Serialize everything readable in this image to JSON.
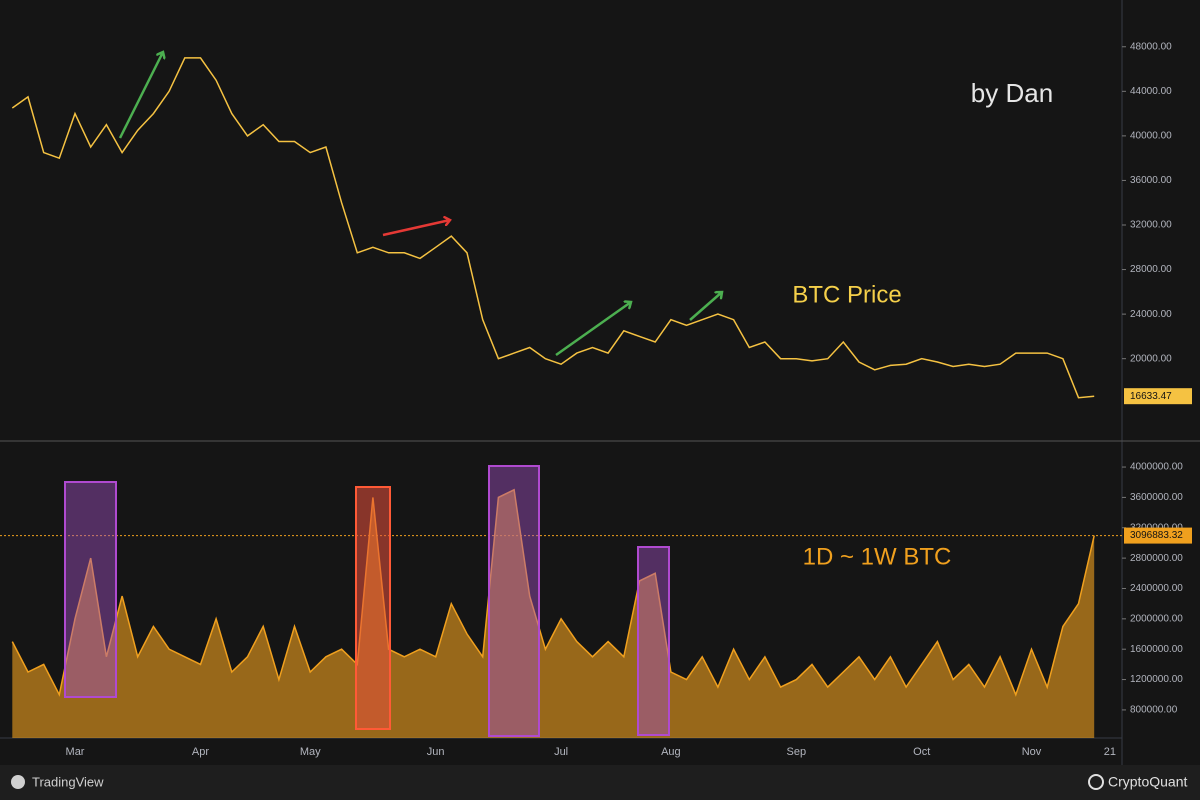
{
  "chart_data": [
    {
      "type": "line",
      "annotations": [
        "by Dan",
        "BTC Price"
      ],
      "color": "#f5c242",
      "values": [
        42500,
        43500,
        38500,
        38000,
        42000,
        39000,
        41000,
        38500,
        40500,
        42000,
        44000,
        47000,
        47000,
        45000,
        42000,
        40000,
        41000,
        39500,
        39500,
        38500,
        39000,
        34000,
        29500,
        30000,
        29500,
        29500,
        29000,
        30000,
        31000,
        29500,
        23500,
        20000,
        20500,
        21000,
        20000,
        19500,
        20500,
        21000,
        20500,
        22500,
        22000,
        21500,
        23500,
        23000,
        23500,
        24000,
        23500,
        21000,
        21500,
        20000,
        20000,
        19800,
        20000,
        21500,
        19700,
        19000,
        19400,
        19500,
        20000,
        19700,
        19300,
        19500,
        19300,
        19500,
        20500,
        20500,
        20500,
        20000,
        16500,
        16633.47,
        null
      ],
      "value_labels": [
        null,
        null,
        null,
        null,
        null,
        null,
        null,
        null,
        null,
        null,
        null,
        null,
        null,
        null,
        null,
        null,
        null,
        null,
        null,
        null,
        null,
        null,
        null,
        null,
        null,
        null,
        null,
        null,
        null,
        null,
        null,
        null,
        null,
        null,
        null,
        null,
        null,
        null,
        null,
        null,
        null,
        null,
        null,
        null,
        null,
        null,
        null,
        null,
        null,
        null,
        null,
        null,
        null,
        null,
        null,
        null,
        null,
        null,
        null,
        null,
        null,
        null,
        null,
        null,
        null,
        null,
        null,
        null,
        null,
        "16633.47",
        null
      ],
      "ylim": [
        12700,
        51300
      ],
      "yticks": [
        {
          "value": 20000,
          "label": "20000.00"
        },
        {
          "value": 24000,
          "label": "24000.00"
        },
        {
          "value": 28000,
          "label": "28000.00"
        },
        {
          "value": 32000,
          "label": "32000.00"
        },
        {
          "value": 36000,
          "label": "36000.00"
        },
        {
          "value": 40000,
          "label": "40000.00"
        },
        {
          "value": 44000,
          "label": "44000.00"
        },
        {
          "value": 48000,
          "label": "48000.00"
        }
      ]
    },
    {
      "type": "area",
      "annotations": [
        "1D ~ 1W BTC"
      ],
      "color": "#f0a01e",
      "categories": [
        null,
        null,
        null,
        null,
        "Mar",
        null,
        null,
        null,
        null,
        null,
        null,
        null,
        "Apr",
        null,
        null,
        null,
        null,
        null,
        null,
        "May",
        null,
        null,
        null,
        null,
        null,
        null,
        null,
        "Jun",
        null,
        null,
        null,
        null,
        null,
        null,
        null,
        "Jul",
        null,
        null,
        null,
        null,
        null,
        null,
        "Aug",
        null,
        null,
        null,
        null,
        null,
        null,
        null,
        "Sep",
        null,
        null,
        null,
        null,
        null,
        null,
        null,
        "Oct",
        null,
        null,
        null,
        null,
        null,
        null,
        "Nov",
        null,
        null,
        null,
        null,
        "21"
      ],
      "values": [
        1700000,
        1300000,
        1400000,
        1000000,
        2000000,
        2800000,
        1500000,
        2300000,
        1500000,
        1900000,
        1600000,
        1500000,
        1400000,
        2000000,
        1300000,
        1500000,
        1900000,
        1200000,
        1900000,
        1300000,
        1500000,
        1600000,
        1400000,
        3600000,
        1600000,
        1500000,
        1600000,
        1500000,
        2200000,
        1800000,
        1500000,
        3600000,
        3700000,
        2300000,
        1600000,
        2000000,
        1700000,
        1500000,
        1700000,
        1500000,
        2500000,
        2600000,
        1300000,
        1200000,
        1500000,
        1100000,
        1600000,
        1200000,
        1500000,
        1100000,
        1200000,
        1400000,
        1100000,
        1300000,
        1500000,
        1200000,
        1500000,
        1100000,
        1400000,
        1700000,
        1200000,
        1400000,
        1100000,
        1500000,
        1000000,
        1600000,
        1100000,
        1900000,
        2200000,
        3096883.32,
        null
      ],
      "value_labels": [
        null,
        null,
        null,
        null,
        null,
        null,
        null,
        null,
        null,
        null,
        null,
        null,
        null,
        null,
        null,
        null,
        null,
        null,
        null,
        null,
        null,
        null,
        null,
        null,
        null,
        null,
        null,
        null,
        null,
        null,
        null,
        null,
        null,
        null,
        null,
        null,
        null,
        null,
        null,
        null,
        null,
        null,
        null,
        null,
        null,
        null,
        null,
        null,
        null,
        null,
        null,
        null,
        null,
        null,
        null,
        null,
        null,
        null,
        null,
        null,
        null,
        null,
        null,
        null,
        null,
        null,
        null,
        null,
        null,
        "3096883.32",
        null
      ],
      "ylim": [
        430000,
        4330000
      ],
      "yticks": [
        {
          "value": 800000,
          "label": "800000.00"
        },
        {
          "value": 1200000,
          "label": "1200000.00"
        },
        {
          "value": 1600000,
          "label": "1600000.00"
        },
        {
          "value": 2000000,
          "label": "2000000.00"
        },
        {
          "value": 2400000,
          "label": "2400000.00"
        },
        {
          "value": 2800000,
          "label": "2800000.00"
        },
        {
          "value": 3200000,
          "label": "3200000.00"
        },
        {
          "value": 3600000,
          "label": "3600000.00"
        },
        {
          "value": 4000000,
          "label": "4000000.00"
        }
      ]
    }
  ],
  "footer": {
    "left": "TradingView",
    "right": "CryptoQuant"
  }
}
